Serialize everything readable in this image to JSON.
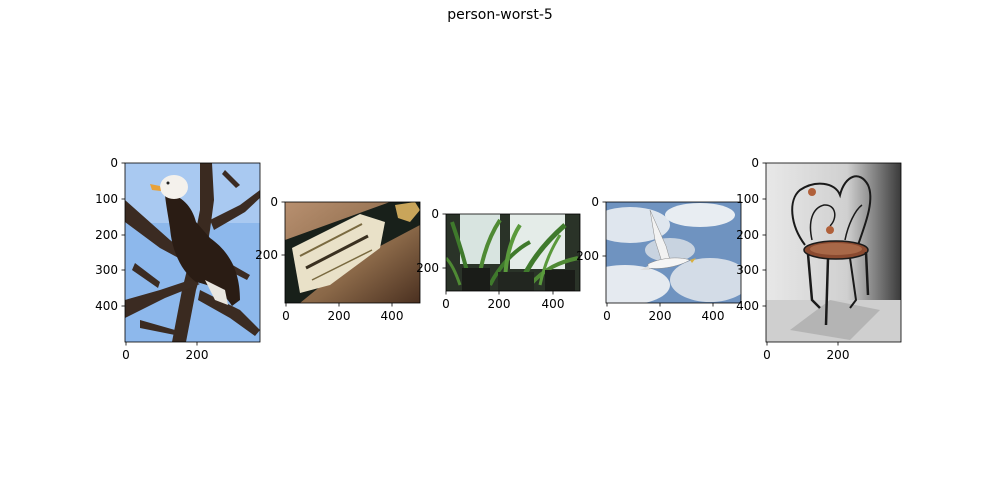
{
  "figure": {
    "title": "person-worst-5"
  },
  "panels": [
    {
      "subject": "bald eagle perched in bare tree against blue sky",
      "yticks": [
        "0",
        "100",
        "200",
        "300",
        "400"
      ],
      "xticks": [
        "0",
        "200"
      ]
    },
    {
      "subject": "champagne bottle with label lying on its side",
      "yticks": [
        "0",
        "200"
      ],
      "xticks": [
        "0",
        "200",
        "400"
      ]
    },
    {
      "subject": "green potted plants on a window sill",
      "yticks": [
        "0",
        "200"
      ],
      "xticks": [
        "0",
        "200",
        "400"
      ]
    },
    {
      "subject": "white seagull flying in cloudy blue sky",
      "yticks": [
        "0",
        "200"
      ],
      "xticks": [
        "0",
        "200",
        "400"
      ]
    },
    {
      "subject": "wrought iron decorative chair with copper seat",
      "yticks": [
        "0",
        "100",
        "200",
        "300",
        "400"
      ],
      "xticks": [
        "0",
        "200"
      ]
    }
  ]
}
